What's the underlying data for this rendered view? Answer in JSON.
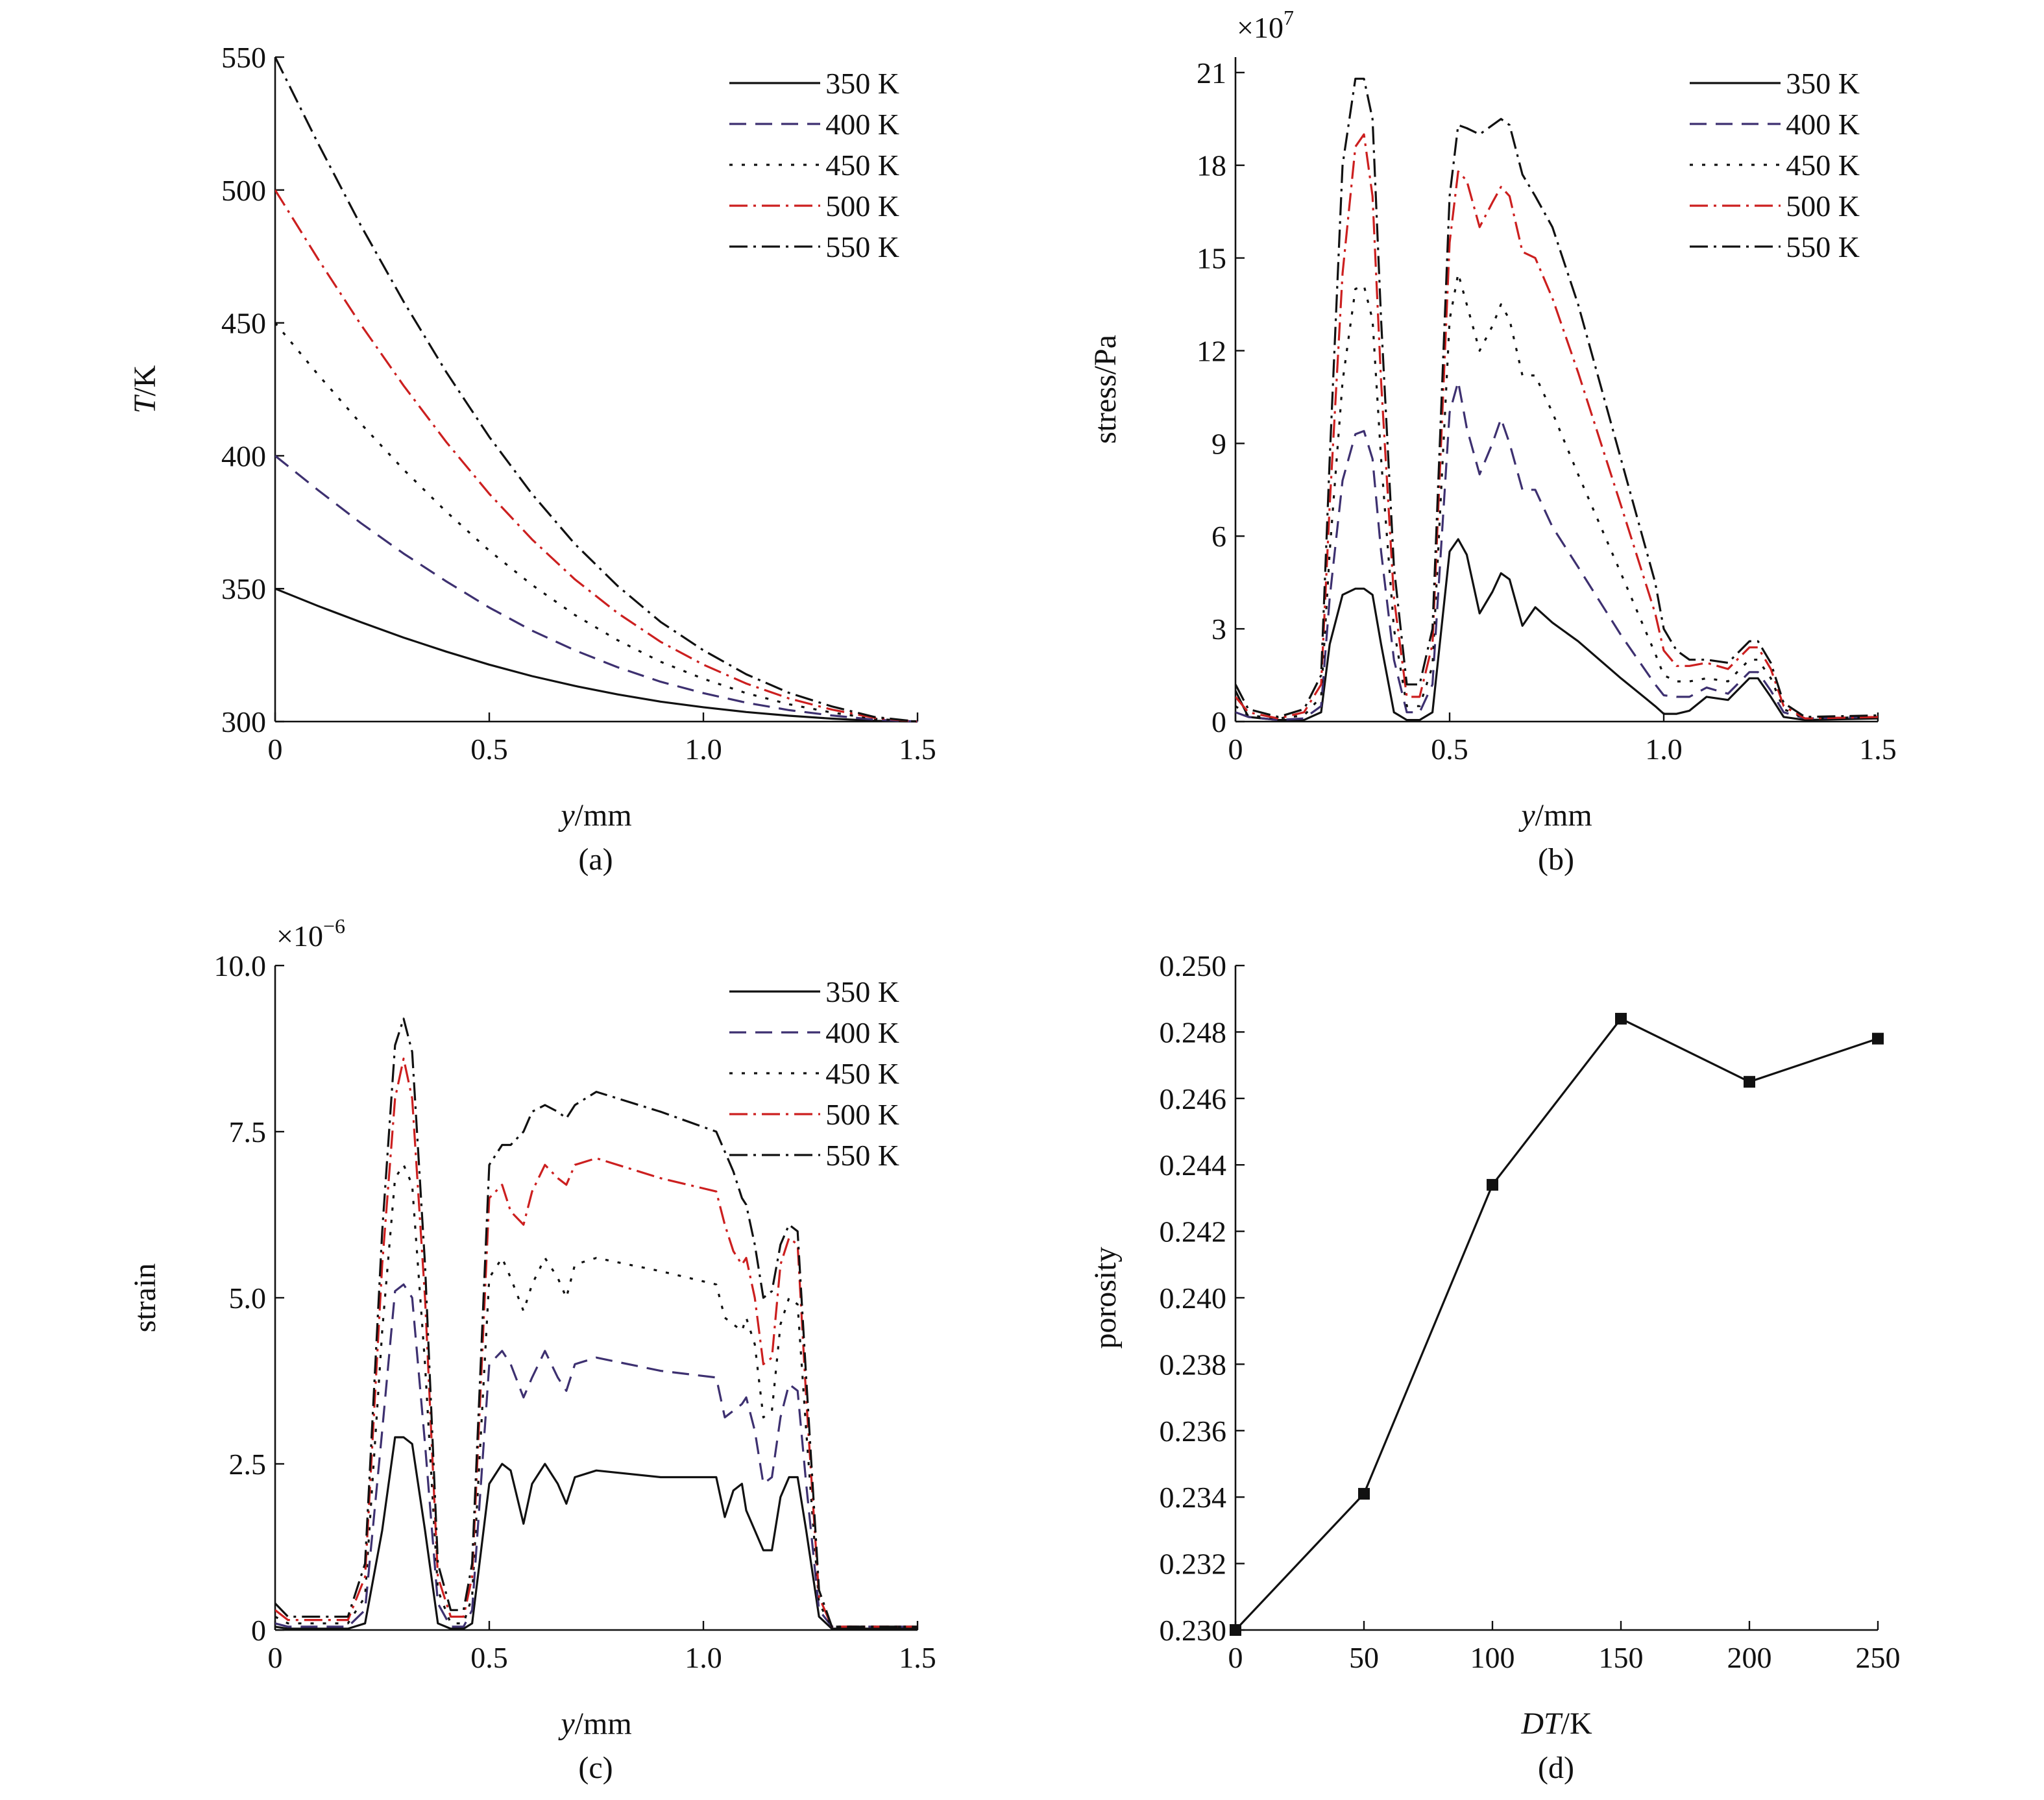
{
  "chart_data": [
    {
      "panel": "(a)",
      "type": "line",
      "title": "",
      "xlabel_italic": "y",
      "xlabel_rest": "/mm",
      "ylabel_italic": "T",
      "ylabel_rest": "/K",
      "multiplier": "",
      "xlim": [
        0,
        1.5
      ],
      "ylim": [
        300,
        550
      ],
      "xticks": [
        "0",
        "0.5",
        "1.0",
        "1.5"
      ],
      "xtick_values": [
        0,
        0.5,
        1.0,
        1.5
      ],
      "yticks": [
        "300",
        "350",
        "400",
        "450",
        "500",
        "550"
      ],
      "ytick_values": [
        300,
        350,
        400,
        450,
        500,
        550
      ],
      "grid": false,
      "legend_position": "top-right",
      "x": [
        0,
        0.1,
        0.2,
        0.3,
        0.4,
        0.5,
        0.6,
        0.7,
        0.8,
        0.9,
        1.0,
        1.1,
        1.2,
        1.3,
        1.4,
        1.5
      ],
      "series": [
        {
          "name": "350 K",
          "color": "#111111",
          "dash": "",
          "values": [
            350,
            343.5,
            337.4,
            331.6,
            326.3,
            321.4,
            317.1,
            313.4,
            310.2,
            307.5,
            305.4,
            303.6,
            302.2,
            301.1,
            300.3,
            300
          ]
        },
        {
          "name": "400 K",
          "color": "#3d3070",
          "dash": "26 14",
          "values": [
            400,
            387.1,
            374.7,
            363.2,
            352.7,
            342.9,
            334.2,
            326.8,
            320.4,
            315.0,
            310.7,
            307.1,
            304.3,
            302.3,
            300.7,
            300
          ]
        },
        {
          "name": "450 K",
          "color": "#111111",
          "dash": "5 14",
          "values": [
            450,
            430.6,
            412.1,
            394.8,
            378.9,
            364.3,
            351.4,
            340.1,
            330.6,
            322.5,
            316.1,
            310.7,
            306.5,
            303.4,
            301.0,
            300
          ]
        },
        {
          "name": "500 K",
          "color": "#cc1f1f",
          "dash": "28 9 4 9",
          "values": [
            500,
            474.1,
            449.4,
            426.4,
            405.1,
            385.7,
            368.5,
            353.5,
            340.8,
            330.0,
            321.4,
            314.3,
            308.7,
            304.5,
            301.4,
            300
          ]
        },
        {
          "name": "550 K",
          "color": "#111111",
          "dash": "28 9 4 9",
          "values": [
            550,
            517.6,
            486.7,
            458.0,
            431.4,
            407.1,
            385.6,
            366.8,
            351.0,
            337.5,
            326.8,
            317.8,
            310.8,
            305.7,
            301.7,
            300
          ]
        }
      ]
    },
    {
      "panel": "(b)",
      "type": "line",
      "title": "",
      "xlabel_italic": "y",
      "xlabel_rest": "/mm",
      "ylabel_italic": "",
      "ylabel_rest": "stress/Pa",
      "multiplier": "×10",
      "multiplier_exp": "7",
      "xlim": [
        0,
        1.5
      ],
      "ylim": [
        0,
        21.5
      ],
      "xticks": [
        "0",
        "0.5",
        "1.0",
        "1.5"
      ],
      "xtick_values": [
        0,
        0.5,
        1.0,
        1.5
      ],
      "yticks": [
        "0",
        "3",
        "6",
        "9",
        "12",
        "15",
        "18",
        "21"
      ],
      "ytick_values": [
        0,
        3,
        6,
        9,
        12,
        15,
        18,
        21
      ],
      "grid": false,
      "legend_position": "top-right",
      "x": [
        0,
        0.03,
        0.1,
        0.16,
        0.2,
        0.22,
        0.25,
        0.28,
        0.3,
        0.32,
        0.34,
        0.37,
        0.4,
        0.43,
        0.46,
        0.5,
        0.52,
        0.54,
        0.57,
        0.6,
        0.62,
        0.64,
        0.67,
        0.7,
        0.74,
        0.8,
        0.9,
        0.98,
        1.0,
        1.03,
        1.06,
        1.1,
        1.15,
        1.2,
        1.22,
        1.25,
        1.28,
        1.33,
        1.5
      ],
      "series": [
        {
          "name": "350 K",
          "color": "#111111",
          "dash": "",
          "values": [
            1.0,
            0.15,
            0.05,
            0.05,
            0.3,
            2.5,
            4.1,
            4.3,
            4.3,
            4.1,
            2.5,
            0.3,
            0.05,
            0.05,
            0.3,
            5.5,
            5.9,
            5.4,
            3.5,
            4.2,
            4.8,
            4.6,
            3.1,
            3.7,
            3.2,
            2.6,
            1.4,
            0.5,
            0.25,
            0.25,
            0.35,
            0.8,
            0.7,
            1.4,
            1.4,
            0.8,
            0.15,
            0.05,
            0.1
          ]
        },
        {
          "name": "400 K",
          "color": "#3d3070",
          "dash": "26 14",
          "values": [
            0.3,
            0.15,
            0.05,
            0.1,
            0.5,
            4.0,
            7.8,
            9.3,
            9.4,
            8.5,
            5.5,
            2.0,
            0.3,
            0.3,
            1.2,
            10.0,
            11.0,
            9.5,
            8.0,
            9.0,
            9.8,
            9.0,
            7.5,
            7.5,
            6.3,
            5.0,
            2.8,
            1.2,
            0.85,
            0.8,
            0.8,
            1.1,
            0.9,
            1.6,
            1.6,
            1.0,
            0.3,
            0.1,
            0.15
          ]
        },
        {
          "name": "450 K",
          "color": "#111111",
          "dash": "5 14",
          "values": [
            0.5,
            0.2,
            0.1,
            0.2,
            0.8,
            5.5,
            11.0,
            14.0,
            14.1,
            13.0,
            8.5,
            3.0,
            0.5,
            0.5,
            1.8,
            13.0,
            14.5,
            13.5,
            12.0,
            12.8,
            13.5,
            13.0,
            11.2,
            11.2,
            10.0,
            8.0,
            4.8,
            2.2,
            1.5,
            1.3,
            1.3,
            1.4,
            1.3,
            2.0,
            2.0,
            1.4,
            0.4,
            0.1,
            0.15
          ]
        },
        {
          "name": "500 K",
          "color": "#cc1f1f",
          "dash": "28 9 4 9",
          "values": [
            0.8,
            0.3,
            0.1,
            0.3,
            1.2,
            7.0,
            14.5,
            18.6,
            19.0,
            17.0,
            11.0,
            4.0,
            0.8,
            0.8,
            2.5,
            15.5,
            17.8,
            17.5,
            16.0,
            16.8,
            17.3,
            17.0,
            15.2,
            15.0,
            13.7,
            11.3,
            7.0,
            3.5,
            2.3,
            1.8,
            1.8,
            1.9,
            1.7,
            2.4,
            2.4,
            1.7,
            0.5,
            0.1,
            0.15
          ]
        },
        {
          "name": "550 K",
          "color": "#111111",
          "dash": "28 9 4 9",
          "values": [
            1.2,
            0.4,
            0.15,
            0.4,
            1.5,
            8.5,
            18.0,
            20.8,
            20.8,
            19.5,
            13.0,
            5.0,
            1.2,
            1.2,
            3.0,
            17.0,
            19.3,
            19.2,
            19.0,
            19.3,
            19.5,
            19.3,
            17.7,
            17.0,
            16.0,
            13.5,
            8.5,
            4.5,
            3.0,
            2.3,
            2.0,
            2.0,
            1.9,
            2.6,
            2.6,
            1.9,
            0.6,
            0.15,
            0.2
          ]
        }
      ]
    },
    {
      "panel": "(c)",
      "type": "line",
      "title": "",
      "xlabel_italic": "y",
      "xlabel_rest": "/mm",
      "ylabel_italic": "",
      "ylabel_rest": "strain",
      "multiplier": "×10",
      "multiplier_exp": "−6",
      "xlim": [
        0,
        1.5
      ],
      "ylim": [
        0,
        10
      ],
      "xticks": [
        "0",
        "0.5",
        "1.0",
        "1.5"
      ],
      "xtick_values": [
        0,
        0.5,
        1.0,
        1.5
      ],
      "yticks": [
        "0",
        "2.5",
        "5.0",
        "7.5",
        "10.0"
      ],
      "ytick_values": [
        0,
        2.5,
        5.0,
        7.5,
        10.0
      ],
      "grid": false,
      "legend_position": "top-right",
      "x": [
        0,
        0.03,
        0.1,
        0.17,
        0.21,
        0.25,
        0.28,
        0.3,
        0.32,
        0.35,
        0.38,
        0.41,
        0.44,
        0.46,
        0.5,
        0.53,
        0.55,
        0.58,
        0.6,
        0.63,
        0.66,
        0.68,
        0.7,
        0.75,
        0.9,
        1.03,
        1.05,
        1.07,
        1.09,
        1.1,
        1.12,
        1.14,
        1.16,
        1.18,
        1.2,
        1.22,
        1.24,
        1.27,
        1.3,
        1.35,
        1.5
      ],
      "series": [
        {
          "name": "350 K",
          "color": "#111111",
          "dash": "",
          "values": [
            0.05,
            0.02,
            0.02,
            0.02,
            0.1,
            1.5,
            2.9,
            2.9,
            2.8,
            1.5,
            0.1,
            0.02,
            0.02,
            0.1,
            2.2,
            2.5,
            2.4,
            1.6,
            2.2,
            2.5,
            2.2,
            1.9,
            2.3,
            2.4,
            2.3,
            2.3,
            1.7,
            2.1,
            2.2,
            1.8,
            1.5,
            1.2,
            1.2,
            2.0,
            2.3,
            2.3,
            1.5,
            0.2,
            0.02,
            0.02,
            0.02
          ]
        },
        {
          "name": "400 K",
          "color": "#3d3070",
          "dash": "26 14",
          "values": [
            0.1,
            0.05,
            0.05,
            0.05,
            0.3,
            3.0,
            5.1,
            5.2,
            5.0,
            2.8,
            0.4,
            0.05,
            0.05,
            0.3,
            4.0,
            4.2,
            4.0,
            3.5,
            3.8,
            4.2,
            3.8,
            3.6,
            4.0,
            4.1,
            3.9,
            3.8,
            3.2,
            3.3,
            3.4,
            3.5,
            3.0,
            2.2,
            2.3,
            3.2,
            3.7,
            3.6,
            2.2,
            0.3,
            0.05,
            0.05,
            0.05
          ]
        },
        {
          "name": "450 K",
          "color": "#111111",
          "dash": "5 14",
          "values": [
            0.2,
            0.1,
            0.1,
            0.1,
            0.5,
            4.5,
            6.8,
            7.0,
            6.7,
            4.0,
            0.6,
            0.1,
            0.1,
            0.5,
            5.3,
            5.6,
            5.3,
            4.8,
            5.2,
            5.6,
            5.3,
            5.0,
            5.5,
            5.6,
            5.4,
            5.2,
            4.7,
            4.6,
            4.5,
            4.7,
            4.3,
            3.2,
            3.3,
            4.6,
            5.0,
            4.9,
            3.0,
            0.4,
            0.05,
            0.05,
            0.05
          ]
        },
        {
          "name": "500 K",
          "color": "#cc1f1f",
          "dash": "28 9 4 9",
          "values": [
            0.3,
            0.15,
            0.15,
            0.15,
            0.8,
            5.5,
            8.0,
            8.6,
            8.0,
            5.0,
            0.8,
            0.2,
            0.2,
            0.8,
            6.5,
            6.7,
            6.3,
            6.1,
            6.6,
            7.0,
            6.8,
            6.7,
            7.0,
            7.1,
            6.8,
            6.6,
            6.1,
            5.7,
            5.5,
            5.6,
            5.0,
            4.0,
            4.1,
            5.5,
            5.9,
            5.8,
            3.5,
            0.5,
            0.05,
            0.05,
            0.05
          ]
        },
        {
          "name": "550 K",
          "color": "#111111",
          "dash": "28 9 4 9",
          "values": [
            0.4,
            0.2,
            0.2,
            0.2,
            1.0,
            6.0,
            8.8,
            9.2,
            8.7,
            5.5,
            1.0,
            0.3,
            0.3,
            1.0,
            7.0,
            7.3,
            7.3,
            7.5,
            7.8,
            7.9,
            7.8,
            7.7,
            7.9,
            8.1,
            7.8,
            7.5,
            7.2,
            6.9,
            6.5,
            6.4,
            5.8,
            5.0,
            5.1,
            5.8,
            6.1,
            6.0,
            3.8,
            0.6,
            0.05,
            0.05,
            0.05
          ]
        }
      ]
    },
    {
      "panel": "(d)",
      "type": "line",
      "title": "",
      "xlabel_italic": "DT",
      "xlabel_rest": "/K",
      "ylabel_italic": "",
      "ylabel_rest": "porosity",
      "multiplier": "",
      "xlim": [
        0,
        250
      ],
      "ylim": [
        0.23,
        0.25
      ],
      "xticks": [
        "0",
        "50",
        "100",
        "150",
        "200",
        "250"
      ],
      "xtick_values": [
        0,
        50,
        100,
        150,
        200,
        250
      ],
      "yticks": [
        "0.230",
        "0.232",
        "0.234",
        "0.236",
        "0.238",
        "0.240",
        "0.242",
        "0.244",
        "0.246",
        "0.248",
        "0.250"
      ],
      "ytick_values": [
        0.23,
        0.232,
        0.234,
        0.236,
        0.238,
        0.24,
        0.242,
        0.244,
        0.246,
        0.248,
        0.25
      ],
      "grid": false,
      "legend_position": "none",
      "x": [
        0,
        50,
        100,
        150,
        200,
        250
      ],
      "series": [
        {
          "name": "",
          "color": "#111111",
          "dash": "",
          "marker": "square",
          "values": [
            0.23,
            0.2341,
            0.2434,
            0.2484,
            0.2465,
            0.2478
          ]
        }
      ]
    }
  ]
}
